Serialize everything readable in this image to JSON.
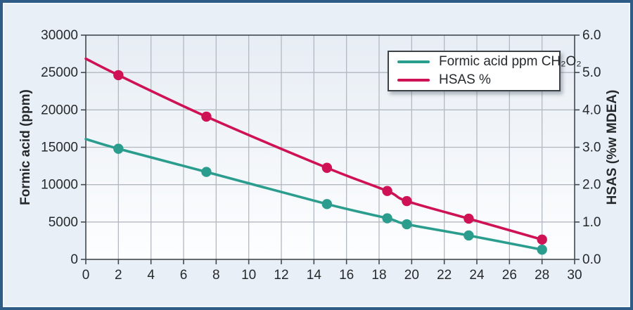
{
  "figure": {
    "page_background": "#e9eff6",
    "frame_border_color": "#2e5c87",
    "plot_background_top": "#e7edf4",
    "plot_background_bottom": "#fdfeff",
    "grid_color": "#b3b9c0",
    "axis_color": "#43484d",
    "text_color": "#26292c"
  },
  "chart_data": {
    "type": "line",
    "title": "",
    "xlabel": "",
    "ylabel_left": "Formic acid (ppm)",
    "ylabel_right": "HSAS (%w MDEA)",
    "xlim": [
      0,
      30
    ],
    "x_ticks": [
      "0",
      "2",
      "4",
      "6",
      "8",
      "10",
      "12",
      "14",
      "16",
      "18",
      "20",
      "22",
      "24",
      "26",
      "28",
      "30"
    ],
    "ylim_left": [
      0,
      30000
    ],
    "y_ticks_left": [
      "0",
      "5000",
      "10000",
      "15000",
      "20000",
      "25000",
      "30000"
    ],
    "ylim_right": [
      0,
      6
    ],
    "y_ticks_right": [
      "0.0",
      "1.0",
      "2.0",
      "3.0",
      "4.0",
      "5.0",
      "6.0"
    ],
    "grid": true,
    "legend_position": "top-right",
    "x": [
      0,
      2,
      7.4,
      14.8,
      18.5,
      19.7,
      23.5,
      28
    ],
    "marker_skip_first_point": true,
    "series": [
      {
        "name": "Formic acid ppm CH₂O₂",
        "axis": "left",
        "color": "#2b9d8e",
        "values": [
          16100,
          14800,
          11700,
          7400,
          5500,
          4700,
          3200,
          1300
        ]
      },
      {
        "name": "HSAS %",
        "axis": "right",
        "color": "#ce1254",
        "values": [
          5.37,
          4.93,
          3.82,
          2.45,
          1.83,
          1.56,
          1.09,
          0.53
        ]
      }
    ]
  }
}
